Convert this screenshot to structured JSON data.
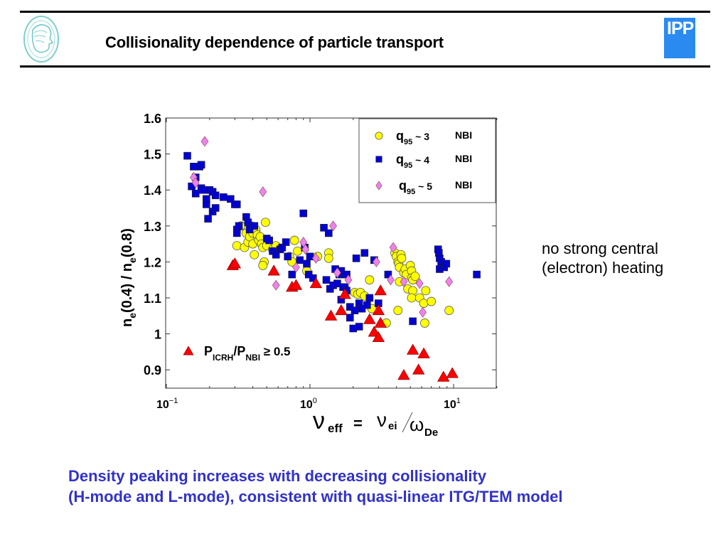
{
  "slide": {
    "title": "Collisionality dependence of particle transport",
    "logos": {
      "left": "max-planck-minerva-logo",
      "right": "IPP"
    },
    "side_note": [
      "no strong central",
      "(electron) heating"
    ],
    "conclusion": [
      "Density peaking increases with decreasing collisionality",
      "(H-mode and L-mode), consistent with quasi-linear ITG/TEM model"
    ],
    "colors": {
      "conclusion": "#3232c8",
      "ipp_logo": "#2a8af0"
    }
  },
  "chart_data": {
    "type": "scatter",
    "title": "",
    "xscale": "log",
    "xlim": [
      0.1,
      20
    ],
    "ylim": [
      0.85,
      1.6
    ],
    "xlabel": {
      "main": "ν",
      "sub": "eff",
      "eq": "=",
      "num": "ν",
      "num_sub": "ei",
      "den": "ω",
      "den_sub": "De"
    },
    "ylabel": "n_e(0.4) / n_e(0.8)",
    "xticks": [
      {
        "value": 0.1,
        "base": "10",
        "exp": "−1"
      },
      {
        "value": 1,
        "base": "10",
        "exp": "0"
      },
      {
        "value": 10,
        "base": "10",
        "exp": "1"
      }
    ],
    "yticks": [
      0.9,
      1,
      1.1,
      1.2,
      1.3,
      1.4,
      1.5,
      1.6
    ],
    "ytick_labels": [
      "0.9",
      "1",
      "1.1",
      "1.2",
      "1.3",
      "1.4",
      "1.5",
      "1.6"
    ],
    "grid": false,
    "legend": {
      "placement": "top-right",
      "entries": [
        {
          "series": "q95_3",
          "q": "q",
          "sub": "95",
          "rest": " ~ 3",
          "heating": "NBI"
        },
        {
          "series": "q95_4",
          "q": "q",
          "sub": "95",
          "rest": " ~ 4",
          "heating": "NBI"
        },
        {
          "series": "q95_5",
          "q": "q",
          "sub": "95",
          "rest": " ~ 5",
          "heating": "NBI"
        }
      ]
    },
    "annotation": {
      "series": "icrh",
      "p": "P",
      "sub1": "ICRH",
      "slash": "/P",
      "sub2": "NBI",
      "rel": "≥ 0.5",
      "placement": "bottom-left"
    },
    "series": [
      {
        "id": "q95_3",
        "name": "q95 ~ 3 NBI",
        "marker": "circle",
        "color": "#ffff00",
        "points": [
          [
            0.31,
            1.245
          ],
          [
            0.33,
            1.3
          ],
          [
            0.35,
            1.24
          ],
          [
            0.36,
            1.28
          ],
          [
            0.37,
            1.255
          ],
          [
            0.38,
            1.27
          ],
          [
            0.39,
            1.3
          ],
          [
            0.4,
            1.25
          ],
          [
            0.4,
            1.28
          ],
          [
            0.41,
            1.22
          ],
          [
            0.42,
            1.29
          ],
          [
            0.43,
            1.275
          ],
          [
            0.44,
            1.26
          ],
          [
            0.45,
            1.27
          ],
          [
            0.46,
            1.25
          ],
          [
            0.47,
            1.24
          ],
          [
            0.48,
            1.2
          ],
          [
            0.49,
            1.31
          ],
          [
            0.47,
            1.19
          ],
          [
            0.5,
            1.245
          ],
          [
            0.55,
            1.235
          ],
          [
            0.58,
            1.245
          ],
          [
            0.72,
            1.215
          ],
          [
            0.75,
            1.2
          ],
          [
            0.78,
            1.26
          ],
          [
            0.82,
            1.23
          ],
          [
            0.95,
            1.175
          ],
          [
            1.13,
            1.215
          ],
          [
            1.35,
            1.225
          ],
          [
            1.35,
            1.21
          ],
          [
            2.05,
            1.115
          ],
          [
            2.15,
            1.11
          ],
          [
            2.25,
            1.115
          ],
          [
            2.4,
            1.105
          ],
          [
            2.6,
            1.15
          ],
          [
            2.7,
            1.07
          ],
          [
            3.4,
            1.03
          ],
          [
            3.9,
            1.225
          ],
          [
            4.0,
            1.215
          ],
          [
            4.1,
            1.2
          ],
          [
            4.15,
            1.195
          ],
          [
            4.2,
            1.185
          ],
          [
            4.3,
            1.22
          ],
          [
            4.35,
            1.21
          ],
          [
            4.2,
            1.145
          ],
          [
            4.5,
            1.17
          ],
          [
            4.6,
            1.18
          ],
          [
            4.7,
            1.165
          ],
          [
            4.8,
            1.125
          ],
          [
            5.0,
            1.19
          ],
          [
            5.1,
            1.175
          ],
          [
            5.1,
            1.155
          ],
          [
            5.2,
            1.12
          ],
          [
            5.1,
            1.1
          ],
          [
            5.2,
            1.15
          ],
          [
            5.4,
            1.16
          ],
          [
            5.8,
            1.1
          ],
          [
            6.2,
            1.085
          ],
          [
            6.4,
            1.12
          ],
          [
            7.0,
            1.09
          ],
          [
            4.1,
            1.065
          ],
          [
            9.3,
            1.065
          ],
          [
            6.3,
            1.03
          ]
        ]
      },
      {
        "id": "q95_4",
        "name": "q95 ~ 4 NBI",
        "marker": "square",
        "color": "#0000d2",
        "points": [
          [
            0.14,
            1.495
          ],
          [
            0.15,
            1.41
          ],
          [
            0.155,
            1.465
          ],
          [
            0.16,
            1.435
          ],
          [
            0.16,
            1.39
          ],
          [
            0.17,
            1.465
          ],
          [
            0.175,
            1.47
          ],
          [
            0.175,
            1.405
          ],
          [
            0.18,
            1.4
          ],
          [
            0.19,
            1.375
          ],
          [
            0.19,
            1.36
          ],
          [
            0.195,
            1.32
          ],
          [
            0.2,
            1.4
          ],
          [
            0.21,
            1.34
          ],
          [
            0.21,
            1.395
          ],
          [
            0.22,
            1.35
          ],
          [
            0.22,
            1.385
          ],
          [
            0.25,
            1.38
          ],
          [
            0.28,
            1.375
          ],
          [
            0.3,
            1.36
          ],
          [
            0.31,
            1.36
          ],
          [
            0.31,
            1.29
          ],
          [
            0.31,
            1.28
          ],
          [
            0.32,
            1.3
          ],
          [
            0.36,
            1.325
          ],
          [
            0.37,
            1.31
          ],
          [
            0.38,
            1.29
          ],
          [
            0.41,
            1.3
          ],
          [
            0.5,
            1.265
          ],
          [
            0.52,
            1.26
          ],
          [
            0.55,
            1.23
          ],
          [
            0.58,
            1.22
          ],
          [
            0.62,
            1.235
          ],
          [
            0.64,
            1.24
          ],
          [
            0.68,
            1.255
          ],
          [
            0.7,
            1.215
          ],
          [
            0.75,
            1.165
          ],
          [
            0.85,
            1.205
          ],
          [
            0.9,
            1.335
          ],
          [
            0.92,
            1.24
          ],
          [
            0.95,
            1.195
          ],
          [
            0.98,
            1.165
          ],
          [
            1.0,
            1.215
          ],
          [
            1.05,
            1.155
          ],
          [
            1.3,
            1.15
          ],
          [
            1.25,
            1.295
          ],
          [
            1.35,
            1.28
          ],
          [
            1.38,
            1.125
          ],
          [
            1.45,
            1.135
          ],
          [
            1.5,
            1.18
          ],
          [
            1.55,
            1.14
          ],
          [
            1.6,
            1.165
          ],
          [
            1.65,
            1.175
          ],
          [
            1.65,
            1.095
          ],
          [
            1.7,
            1.13
          ],
          [
            1.75,
            1.13
          ],
          [
            1.8,
            1.165
          ],
          [
            1.8,
            1.12
          ],
          [
            1.9,
            1.075
          ],
          [
            1.9,
            1.045
          ],
          [
            2.0,
            1.015
          ],
          [
            2.05,
            1.065
          ],
          [
            2.1,
            1.21
          ],
          [
            2.2,
            1.085
          ],
          [
            2.2,
            1.02
          ],
          [
            2.3,
            1.07
          ],
          [
            2.4,
            1.225
          ],
          [
            2.5,
            1.08
          ],
          [
            2.6,
            1.1
          ],
          [
            2.8,
            1.205
          ],
          [
            3.0,
            1.085
          ],
          [
            3.5,
            1.165
          ],
          [
            5.2,
            1.035
          ],
          [
            7.8,
            1.235
          ],
          [
            7.9,
            1.225
          ],
          [
            8.0,
            1.21
          ],
          [
            8.0,
            1.18
          ],
          [
            8.2,
            1.2
          ],
          [
            8.6,
            1.185
          ],
          [
            8.9,
            1.195
          ],
          [
            14.5,
            1.165
          ]
        ]
      },
      {
        "id": "q95_5",
        "name": "q95 ~ 5 NBI",
        "marker": "diamond",
        "color": "#ee82ee",
        "points": [
          [
            0.185,
            1.535
          ],
          [
            0.155,
            1.435
          ],
          [
            0.16,
            1.42
          ],
          [
            0.47,
            1.395
          ],
          [
            0.58,
            1.135
          ],
          [
            0.8,
            1.185
          ],
          [
            0.9,
            1.255
          ],
          [
            0.93,
            1.235
          ],
          [
            1.1,
            1.21
          ],
          [
            1.45,
            1.3
          ],
          [
            1.55,
            1.17
          ],
          [
            1.85,
            1.15
          ],
          [
            2.9,
            1.2
          ],
          [
            3.65,
            1.15
          ],
          [
            3.8,
            1.24
          ],
          [
            4.5,
            1.145
          ],
          [
            5.8,
            1.14
          ],
          [
            6.1,
            1.06
          ],
          [
            9.3,
            1.145
          ]
        ]
      },
      {
        "id": "icrh",
        "name": "P_ICRH/P_NBI ≥ 0.5",
        "marker": "triangle",
        "color": "#ff0000",
        "points": [
          [
            0.29,
            1.19
          ],
          [
            0.3,
            1.195
          ],
          [
            0.56,
            1.175
          ],
          [
            0.75,
            1.13
          ],
          [
            0.8,
            1.135
          ],
          [
            1.1,
            1.14
          ],
          [
            1.4,
            1.05
          ],
          [
            1.65,
            1.065
          ],
          [
            1.75,
            1.11
          ],
          [
            2.6,
            1.04
          ],
          [
            2.8,
            1.005
          ],
          [
            3.0,
            1.065
          ],
          [
            3.1,
            1.12
          ],
          [
            3.1,
            1.03
          ],
          [
            3.0,
            0.99
          ],
          [
            4.5,
            0.885
          ],
          [
            5.2,
            0.955
          ],
          [
            5.7,
            0.9
          ],
          [
            6.2,
            0.945
          ],
          [
            8.5,
            0.88
          ],
          [
            9.8,
            0.89
          ]
        ]
      }
    ]
  }
}
